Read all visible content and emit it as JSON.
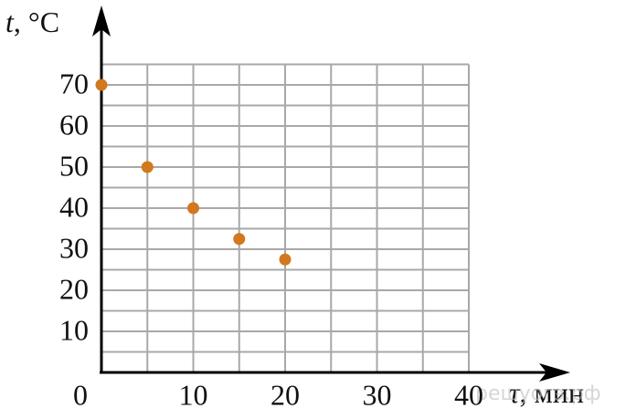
{
  "chart_data": {
    "type": "scatter",
    "y_label_var": "t",
    "y_label_unit": ", °C",
    "x_label_var": "τ",
    "x_label_unit": ", мин",
    "x": [
      0,
      5,
      10,
      15,
      20
    ],
    "values": [
      70,
      50,
      40,
      32.5,
      27.5
    ],
    "color": "#d2781e",
    "xlim": [
      0,
      40
    ],
    "xticks": [
      0,
      10,
      20,
      30,
      40
    ],
    "ylim": [
      0,
      75
    ],
    "yticks": [
      10,
      20,
      30,
      40,
      50,
      60,
      70
    ],
    "x_grid": [
      0,
      5,
      10,
      15,
      20,
      25,
      30,
      35,
      40
    ],
    "y_grid": [
      5,
      10,
      15,
      20,
      25,
      30,
      35,
      40,
      45,
      50,
      55,
      60,
      65,
      70,
      75
    ],
    "grid": true,
    "watermark": "решуогэ.рф"
  }
}
